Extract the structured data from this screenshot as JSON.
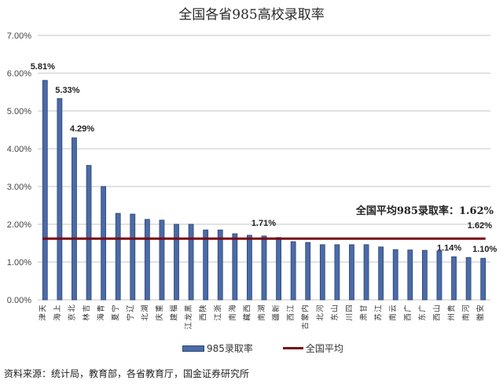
{
  "title": "全国各省985高校录取率",
  "legend": {
    "bar_label": "985录取率",
    "line_label": "全国平均"
  },
  "source": "资料来源：统计局，教育部，各省教育厅，国金证券研究所",
  "colors": {
    "bar": "#4a6ba6",
    "bar_edge": "#2d4677",
    "average_line": "#7a0a14",
    "grid": "#d0d0d0"
  },
  "chart_data": {
    "type": "bar",
    "title": "全国各省985高校录取率",
    "xlabel": "",
    "ylabel": "",
    "ylim": [
      0,
      0.07
    ],
    "yticks": [
      "0.00%",
      "1.00%",
      "2.00%",
      "3.00%",
      "4.00%",
      "5.00%",
      "6.00%",
      "7.00%"
    ],
    "grid": true,
    "legend_position": "bottom",
    "categories": [
      "天津",
      "上海",
      "北京",
      "吉林",
      "青海",
      "宁夏",
      "辽宁",
      "湖北",
      "重庆",
      "福建",
      "黑龙江",
      "陕西",
      "浙江",
      "海南",
      "西藏",
      "湖南",
      "新疆",
      "江西",
      "内蒙古",
      "河北",
      "山东",
      "四川",
      "甘肃",
      "江苏",
      "云南",
      "广西",
      "广东",
      "山西",
      "贵州",
      "河南",
      "安徽"
    ],
    "series": [
      {
        "name": "985录取率",
        "type": "bar",
        "values": [
          5.81,
          5.33,
          4.29,
          3.56,
          3.0,
          2.29,
          2.27,
          2.13,
          2.11,
          2.0,
          2.0,
          1.85,
          1.85,
          1.75,
          1.71,
          1.69,
          1.65,
          1.54,
          1.52,
          1.46,
          1.46,
          1.46,
          1.46,
          1.4,
          1.33,
          1.32,
          1.31,
          1.29,
          1.14,
          1.12,
          1.1
        ]
      },
      {
        "name": "全国平均",
        "type": "line",
        "values": [
          1.62,
          1.62,
          1.62,
          1.62,
          1.62,
          1.62,
          1.62,
          1.62,
          1.62,
          1.62,
          1.62,
          1.62,
          1.62,
          1.62,
          1.62,
          1.62,
          1.62,
          1.62,
          1.62,
          1.62,
          1.62,
          1.62,
          1.62,
          1.62,
          1.62,
          1.62,
          1.62,
          1.62,
          1.62,
          1.62,
          1.62
        ]
      }
    ],
    "data_labels": [
      {
        "category": "天津",
        "text": "5.81%"
      },
      {
        "category": "上海",
        "text": "5.33%"
      },
      {
        "category": "北京",
        "text": "4.29%"
      },
      {
        "category": "西藏",
        "text": "1.71%"
      },
      {
        "category": "贵州",
        "text": "1.14%"
      },
      {
        "category": "安徽",
        "text": "1.10%"
      }
    ],
    "average_label": "1.62%",
    "annotations": [
      "全国平均985录取率：1.62%"
    ]
  }
}
